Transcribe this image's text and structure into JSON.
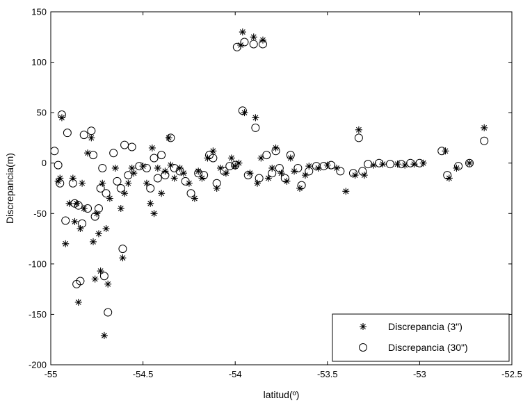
{
  "chart_data": {
    "type": "scatter",
    "title": "",
    "xlabel": "latitud(º)",
    "ylabel": "Discrepancia(m)",
    "xlim": [
      -55,
      -52.5
    ],
    "ylim": [
      -200,
      150
    ],
    "xticks": [
      -55,
      -54.5,
      -54,
      -53.5,
      -53,
      -52.5
    ],
    "xtick_labels": [
      "-55",
      "-54.5",
      "-54",
      "-53.5",
      "-53",
      "-52.5"
    ],
    "yticks": [
      -200,
      -150,
      -100,
      -50,
      0,
      50,
      100,
      150
    ],
    "ytick_labels": [
      "-200",
      "-150",
      "-100",
      "-50",
      "0",
      "50",
      "100",
      "150"
    ],
    "grid": false,
    "legend_position": "bottom-right",
    "series": [
      {
        "name": "Discrepancia (3\")",
        "marker": "asterisk",
        "points": [
          [
            -54.96,
            -18
          ],
          [
            -54.95,
            -15
          ],
          [
            -54.94,
            45
          ],
          [
            -54.92,
            -80
          ],
          [
            -54.9,
            -40
          ],
          [
            -54.88,
            -15
          ],
          [
            -54.87,
            -58
          ],
          [
            -54.86,
            -40
          ],
          [
            -54.85,
            -138
          ],
          [
            -54.84,
            -65
          ],
          [
            -54.83,
            -20
          ],
          [
            -54.82,
            -45
          ],
          [
            -54.8,
            10
          ],
          [
            -54.78,
            25
          ],
          [
            -54.77,
            -78
          ],
          [
            -54.76,
            -115
          ],
          [
            -54.75,
            -50
          ],
          [
            -54.74,
            -70
          ],
          [
            -54.73,
            -107
          ],
          [
            -54.72,
            -20
          ],
          [
            -54.71,
            -171
          ],
          [
            -54.7,
            -65
          ],
          [
            -54.69,
            -120
          ],
          [
            -54.68,
            -35
          ],
          [
            -54.65,
            -5
          ],
          [
            -54.62,
            -45
          ],
          [
            -54.61,
            -94
          ],
          [
            -54.6,
            -30
          ],
          [
            -54.58,
            -20
          ],
          [
            -54.56,
            -5
          ],
          [
            -54.55,
            -10
          ],
          [
            -54.5,
            -3
          ],
          [
            -54.48,
            -20
          ],
          [
            -54.46,
            -40
          ],
          [
            -54.45,
            15
          ],
          [
            -54.44,
            -50
          ],
          [
            -54.42,
            -5
          ],
          [
            -54.4,
            -30
          ],
          [
            -54.38,
            -8
          ],
          [
            -54.36,
            25
          ],
          [
            -54.35,
            -2
          ],
          [
            -54.33,
            -15
          ],
          [
            -54.3,
            -5
          ],
          [
            -54.28,
            -10
          ],
          [
            -54.25,
            -20
          ],
          [
            -54.22,
            -35
          ],
          [
            -54.2,
            -8
          ],
          [
            -54.18,
            -15
          ],
          [
            -54.15,
            5
          ],
          [
            -54.12,
            12
          ],
          [
            -54.1,
            -25
          ],
          [
            -54.08,
            -5
          ],
          [
            -54.05,
            -10
          ],
          [
            -54.02,
            5
          ],
          [
            -54.0,
            -3
          ],
          [
            -53.98,
            0
          ],
          [
            -53.97,
            117
          ],
          [
            -53.96,
            130
          ],
          [
            -53.95,
            50
          ],
          [
            -53.92,
            -10
          ],
          [
            -53.9,
            125
          ],
          [
            -53.89,
            45
          ],
          [
            -53.88,
            -20
          ],
          [
            -53.86,
            5
          ],
          [
            -53.85,
            122
          ],
          [
            -53.82,
            -15
          ],
          [
            -53.8,
            -5
          ],
          [
            -53.78,
            15
          ],
          [
            -53.75,
            -10
          ],
          [
            -53.72,
            -18
          ],
          [
            -53.7,
            5
          ],
          [
            -53.68,
            -8
          ],
          [
            -53.65,
            -25
          ],
          [
            -53.62,
            -12
          ],
          [
            -53.6,
            -3
          ],
          [
            -53.55,
            -5
          ],
          [
            -53.5,
            -2
          ],
          [
            -53.45,
            -5
          ],
          [
            -53.4,
            -28
          ],
          [
            -53.35,
            -12
          ],
          [
            -53.33,
            33
          ],
          [
            -53.3,
            -12
          ],
          [
            -53.25,
            -2
          ],
          [
            -53.2,
            -1
          ],
          [
            -53.12,
            -1
          ],
          [
            -53.08,
            -2
          ],
          [
            -53.03,
            -1
          ],
          [
            -52.98,
            0
          ],
          [
            -52.86,
            12
          ],
          [
            -52.84,
            -15
          ],
          [
            -52.8,
            -5
          ],
          [
            -52.73,
            0
          ],
          [
            -52.65,
            35
          ]
        ]
      },
      {
        "name": "Discrepancia (30\")",
        "marker": "circle",
        "points": [
          [
            -54.98,
            12
          ],
          [
            -54.96,
            -2
          ],
          [
            -54.95,
            -20
          ],
          [
            -54.94,
            48
          ],
          [
            -54.92,
            -57
          ],
          [
            -54.91,
            30
          ],
          [
            -54.88,
            -20
          ],
          [
            -54.87,
            -40
          ],
          [
            -54.86,
            -120
          ],
          [
            -54.85,
            -42
          ],
          [
            -54.84,
            -117
          ],
          [
            -54.83,
            -60
          ],
          [
            -54.82,
            28
          ],
          [
            -54.8,
            -45
          ],
          [
            -54.78,
            32
          ],
          [
            -54.77,
            8
          ],
          [
            -54.76,
            -53
          ],
          [
            -54.74,
            -45
          ],
          [
            -54.73,
            -25
          ],
          [
            -54.72,
            -5
          ],
          [
            -54.71,
            -112
          ],
          [
            -54.7,
            -30
          ],
          [
            -54.69,
            -148
          ],
          [
            -54.66,
            10
          ],
          [
            -54.64,
            -18
          ],
          [
            -54.62,
            -25
          ],
          [
            -54.61,
            -85
          ],
          [
            -54.6,
            18
          ],
          [
            -54.58,
            -12
          ],
          [
            -54.56,
            16
          ],
          [
            -54.52,
            -3
          ],
          [
            -54.48,
            -5
          ],
          [
            -54.46,
            -25
          ],
          [
            -54.44,
            5
          ],
          [
            -54.42,
            -15
          ],
          [
            -54.4,
            8
          ],
          [
            -54.38,
            -12
          ],
          [
            -54.35,
            25
          ],
          [
            -54.33,
            -5
          ],
          [
            -54.3,
            -8
          ],
          [
            -54.27,
            -18
          ],
          [
            -54.24,
            -30
          ],
          [
            -54.2,
            -10
          ],
          [
            -54.17,
            -12
          ],
          [
            -54.14,
            8
          ],
          [
            -54.12,
            5
          ],
          [
            -54.1,
            -20
          ],
          [
            -54.06,
            -8
          ],
          [
            -54.03,
            -3
          ],
          [
            -54.0,
            -2
          ],
          [
            -53.99,
            115
          ],
          [
            -53.96,
            52
          ],
          [
            -53.95,
            120
          ],
          [
            -53.93,
            -12
          ],
          [
            -53.9,
            118
          ],
          [
            -53.89,
            35
          ],
          [
            -53.87,
            -15
          ],
          [
            -53.85,
            118
          ],
          [
            -53.83,
            8
          ],
          [
            -53.8,
            -10
          ],
          [
            -53.78,
            12
          ],
          [
            -53.76,
            -5
          ],
          [
            -53.73,
            -15
          ],
          [
            -53.7,
            8
          ],
          [
            -53.66,
            -5
          ],
          [
            -53.64,
            -22
          ],
          [
            -53.6,
            -8
          ],
          [
            -53.56,
            -3
          ],
          [
            -53.52,
            -3
          ],
          [
            -53.48,
            -2
          ],
          [
            -53.43,
            -8
          ],
          [
            -53.36,
            -10
          ],
          [
            -53.33,
            25
          ],
          [
            -53.31,
            -8
          ],
          [
            -53.28,
            -1
          ],
          [
            -53.22,
            0
          ],
          [
            -53.16,
            -1
          ],
          [
            -53.1,
            -1
          ],
          [
            -53.05,
            0
          ],
          [
            -53.0,
            0
          ],
          [
            -52.88,
            12
          ],
          [
            -52.85,
            -12
          ],
          [
            -52.79,
            -3
          ],
          [
            -52.73,
            0
          ],
          [
            -52.65,
            22
          ]
        ]
      }
    ]
  }
}
